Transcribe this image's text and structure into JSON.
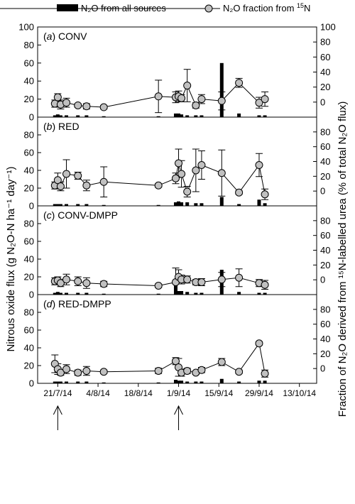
{
  "legend": {
    "bar_label": "N₂O from all sources",
    "line_label_prefix": "N₂O fraction from ",
    "line_label_sup": "15",
    "line_label_suffix": "N"
  },
  "axes": {
    "left_ylabel": "Nitrous oxide flux (g N₂O-N ha⁻¹ day⁻¹)",
    "right_ylabel": "Fraction of N₂O derived from ¹⁵N-labelled urea (% of total N₂O flux)",
    "left_ticks": [
      "0",
      "20",
      "40",
      "60",
      "80",
      "100"
    ],
    "right_ticks_top": [
      "0",
      "20",
      "40",
      "60",
      "80",
      "100"
    ],
    "right_ticks": [
      "0",
      "20",
      "40",
      "60",
      "80"
    ],
    "x_ticks": [
      "21/7/14",
      "4/8/14",
      "18/8/14",
      "1/9/14",
      "15/9/14",
      "29/9/14",
      "13/10/14"
    ]
  },
  "chart_data": [
    {
      "type": "bar+line",
      "panel_label": "(a) CONV",
      "letter": "a",
      "name": "CONV",
      "flux": [
        {
          "x": "2014-07-20",
          "y": 2
        },
        {
          "x": "2014-07-21",
          "y": 3
        },
        {
          "x": "2014-07-22",
          "y": 2
        },
        {
          "x": "2014-07-24",
          "y": 2
        },
        {
          "x": "2014-07-28",
          "y": 2
        },
        {
          "x": "2014-07-31",
          "y": 2
        },
        {
          "x": "2014-08-06",
          "y": 1
        },
        {
          "x": "2014-08-25",
          "y": 1
        },
        {
          "x": "2014-08-31",
          "y": 4
        },
        {
          "x": "2014-09-01",
          "y": 4
        },
        {
          "x": "2014-09-02",
          "y": 3
        },
        {
          "x": "2014-09-04",
          "y": 2
        },
        {
          "x": "2014-09-07",
          "y": 2
        },
        {
          "x": "2014-09-09",
          "y": 2
        },
        {
          "x": "2014-09-16",
          "y": 60
        },
        {
          "x": "2014-09-22",
          "y": 4
        },
        {
          "x": "2014-09-29",
          "y": 2
        },
        {
          "x": "2014-10-01",
          "y": 2
        }
      ],
      "fraction": [
        {
          "x": "2014-07-20",
          "y": 15,
          "err": 4
        },
        {
          "x": "2014-07-21",
          "y": 22,
          "err": 4
        },
        {
          "x": "2014-07-22",
          "y": 14,
          "err": 5
        },
        {
          "x": "2014-07-24",
          "y": 16,
          "err": 5
        },
        {
          "x": "2014-07-28",
          "y": 13,
          "err": 2
        },
        {
          "x": "2014-07-31",
          "y": 12,
          "err": 3
        },
        {
          "x": "2014-08-06",
          "y": 11,
          "err": 2
        },
        {
          "x": "2014-08-25",
          "y": 23,
          "err": 18
        },
        {
          "x": "2014-08-31",
          "y": 22,
          "err": 6
        },
        {
          "x": "2014-09-01",
          "y": 23,
          "err": 6
        },
        {
          "x": "2014-09-02",
          "y": 21,
          "err": 4
        },
        {
          "x": "2014-09-04",
          "y": 35,
          "err": 18
        },
        {
          "x": "2014-09-07",
          "y": 13,
          "err": 3
        },
        {
          "x": "2014-09-09",
          "y": 20,
          "err": 5
        },
        {
          "x": "2014-09-16",
          "y": 18,
          "err": 10
        },
        {
          "x": "2014-09-22",
          "y": 38,
          "err": 5
        },
        {
          "x": "2014-09-29",
          "y": 16,
          "err": 6
        },
        {
          "x": "2014-10-01",
          "y": 20,
          "err": 8
        }
      ]
    },
    {
      "type": "bar+line",
      "panel_label": "(b) RED",
      "letter": "b",
      "name": "RED",
      "flux": [
        {
          "x": "2014-07-20",
          "y": 2
        },
        {
          "x": "2014-07-21",
          "y": 2
        },
        {
          "x": "2014-07-22",
          "y": 2
        },
        {
          "x": "2014-07-24",
          "y": 2
        },
        {
          "x": "2014-07-28",
          "y": 2
        },
        {
          "x": "2014-07-31",
          "y": 2
        },
        {
          "x": "2014-08-06",
          "y": 1
        },
        {
          "x": "2014-08-25",
          "y": 1
        },
        {
          "x": "2014-08-31",
          "y": 4
        },
        {
          "x": "2014-09-01",
          "y": 5
        },
        {
          "x": "2014-09-02",
          "y": 4
        },
        {
          "x": "2014-09-04",
          "y": 4
        },
        {
          "x": "2014-09-07",
          "y": 3
        },
        {
          "x": "2014-09-09",
          "y": 3
        },
        {
          "x": "2014-09-16",
          "y": 10
        },
        {
          "x": "2014-09-22",
          "y": 2
        },
        {
          "x": "2014-09-29",
          "y": 7
        },
        {
          "x": "2014-10-01",
          "y": 3
        }
      ],
      "fraction": [
        {
          "x": "2014-07-20",
          "y": 23,
          "err": 4
        },
        {
          "x": "2014-07-21",
          "y": 29,
          "err": 8
        },
        {
          "x": "2014-07-22",
          "y": 22,
          "err": 5
        },
        {
          "x": "2014-07-24",
          "y": 36,
          "err": 16
        },
        {
          "x": "2014-07-28",
          "y": 34,
          "err": 4
        },
        {
          "x": "2014-07-31",
          "y": 23,
          "err": 6
        },
        {
          "x": "2014-08-06",
          "y": 27,
          "err": 17
        },
        {
          "x": "2014-08-25",
          "y": 23,
          "err": 2
        },
        {
          "x": "2014-08-31",
          "y": 31,
          "err": 6
        },
        {
          "x": "2014-09-01",
          "y": 48,
          "err": 16
        },
        {
          "x": "2014-09-02",
          "y": 36,
          "err": 15
        },
        {
          "x": "2014-09-04",
          "y": 16,
          "err": 6
        },
        {
          "x": "2014-09-07",
          "y": 40,
          "err": 24
        },
        {
          "x": "2014-09-09",
          "y": 46,
          "err": 16
        },
        {
          "x": "2014-09-16",
          "y": 37,
          "err": 26
        },
        {
          "x": "2014-09-22",
          "y": 15,
          "err": 2
        },
        {
          "x": "2014-09-29",
          "y": 46,
          "err": 13
        },
        {
          "x": "2014-10-01",
          "y": 13,
          "err": 6
        }
      ]
    },
    {
      "type": "bar+line",
      "panel_label": "(c) CONV-DMPP",
      "letter": "c",
      "name": "CONV-DMPP",
      "flux": [
        {
          "x": "2014-07-20",
          "y": 2
        },
        {
          "x": "2014-07-21",
          "y": 3
        },
        {
          "x": "2014-07-22",
          "y": 2
        },
        {
          "x": "2014-07-24",
          "y": 2
        },
        {
          "x": "2014-07-28",
          "y": 2
        },
        {
          "x": "2014-07-31",
          "y": 2
        },
        {
          "x": "2014-08-06",
          "y": 1
        },
        {
          "x": "2014-08-25",
          "y": 1
        },
        {
          "x": "2014-08-31",
          "y": 14
        },
        {
          "x": "2014-09-01",
          "y": 4
        },
        {
          "x": "2014-09-02",
          "y": 4
        },
        {
          "x": "2014-09-04",
          "y": 3
        },
        {
          "x": "2014-09-07",
          "y": 2
        },
        {
          "x": "2014-09-09",
          "y": 2
        },
        {
          "x": "2014-09-16",
          "y": 28
        },
        {
          "x": "2014-09-22",
          "y": 3
        },
        {
          "x": "2014-09-29",
          "y": 2
        },
        {
          "x": "2014-10-01",
          "y": 2
        }
      ],
      "fraction": [
        {
          "x": "2014-07-20",
          "y": 15,
          "err": 4
        },
        {
          "x": "2014-07-21",
          "y": 16,
          "err": 4
        },
        {
          "x": "2014-07-22",
          "y": 13,
          "err": 4
        },
        {
          "x": "2014-07-24",
          "y": 17,
          "err": 6
        },
        {
          "x": "2014-07-28",
          "y": 15,
          "err": 5
        },
        {
          "x": "2014-07-31",
          "y": 13,
          "err": 6
        },
        {
          "x": "2014-08-06",
          "y": 12,
          "err": 3
        },
        {
          "x": "2014-08-25",
          "y": 10,
          "err": 2
        },
        {
          "x": "2014-08-31",
          "y": 14,
          "err": 16
        },
        {
          "x": "2014-09-01",
          "y": 20,
          "err": 8
        },
        {
          "x": "2014-09-02",
          "y": 17,
          "err": 5
        },
        {
          "x": "2014-09-04",
          "y": 17,
          "err": 4
        },
        {
          "x": "2014-09-07",
          "y": 14,
          "err": 3
        },
        {
          "x": "2014-09-09",
          "y": 14,
          "err": 4
        },
        {
          "x": "2014-09-16",
          "y": 17,
          "err": 8
        },
        {
          "x": "2014-09-22",
          "y": 19,
          "err": 10
        },
        {
          "x": "2014-09-29",
          "y": 13,
          "err": 4
        },
        {
          "x": "2014-10-01",
          "y": 11,
          "err": 5
        }
      ]
    },
    {
      "type": "bar+line",
      "panel_label": "(d) RED-DMPP",
      "letter": "d",
      "name": "RED-DMPP",
      "flux": [
        {
          "x": "2014-07-20",
          "y": 2
        },
        {
          "x": "2014-07-21",
          "y": 2
        },
        {
          "x": "2014-07-22",
          "y": 2
        },
        {
          "x": "2014-07-24",
          "y": 2
        },
        {
          "x": "2014-07-28",
          "y": 2
        },
        {
          "x": "2014-07-31",
          "y": 2
        },
        {
          "x": "2014-08-06",
          "y": 1
        },
        {
          "x": "2014-08-25",
          "y": 1
        },
        {
          "x": "2014-08-31",
          "y": 4
        },
        {
          "x": "2014-09-01",
          "y": 3
        },
        {
          "x": "2014-09-02",
          "y": 3
        },
        {
          "x": "2014-09-04",
          "y": 2
        },
        {
          "x": "2014-09-07",
          "y": 2
        },
        {
          "x": "2014-09-09",
          "y": 2
        },
        {
          "x": "2014-09-16",
          "y": 5
        },
        {
          "x": "2014-09-22",
          "y": 2
        },
        {
          "x": "2014-09-29",
          "y": 3
        },
        {
          "x": "2014-10-01",
          "y": 3
        }
      ],
      "fraction": [
        {
          "x": "2014-07-20",
          "y": 22,
          "err": 10
        },
        {
          "x": "2014-07-21",
          "y": 16,
          "err": 6
        },
        {
          "x": "2014-07-22",
          "y": 12,
          "err": 3
        },
        {
          "x": "2014-07-24",
          "y": 16,
          "err": 5
        },
        {
          "x": "2014-07-28",
          "y": 12,
          "err": 3
        },
        {
          "x": "2014-07-31",
          "y": 14,
          "err": 5
        },
        {
          "x": "2014-08-06",
          "y": 13,
          "err": 2
        },
        {
          "x": "2014-08-25",
          "y": 14,
          "err": 3
        },
        {
          "x": "2014-08-31",
          "y": 25,
          "err": 4
        },
        {
          "x": "2014-09-01",
          "y": 18,
          "err": 10
        },
        {
          "x": "2014-09-02",
          "y": 12,
          "err": 4
        },
        {
          "x": "2014-09-04",
          "y": 14,
          "err": 3
        },
        {
          "x": "2014-09-07",
          "y": 12,
          "err": 2
        },
        {
          "x": "2014-09-09",
          "y": 15,
          "err": 3
        },
        {
          "x": "2014-09-16",
          "y": 24,
          "err": 4
        },
        {
          "x": "2014-09-22",
          "y": 13,
          "err": 2
        },
        {
          "x": "2014-09-29",
          "y": 45,
          "err": 2
        },
        {
          "x": "2014-10-01",
          "y": 11,
          "err": 4
        }
      ]
    }
  ],
  "fertiliser_arrows": [
    "2014-07-21",
    "2014-09-01"
  ],
  "colors": {
    "bar": "#000000",
    "marker_fill": "#c0c0c0",
    "line": "#000000"
  }
}
